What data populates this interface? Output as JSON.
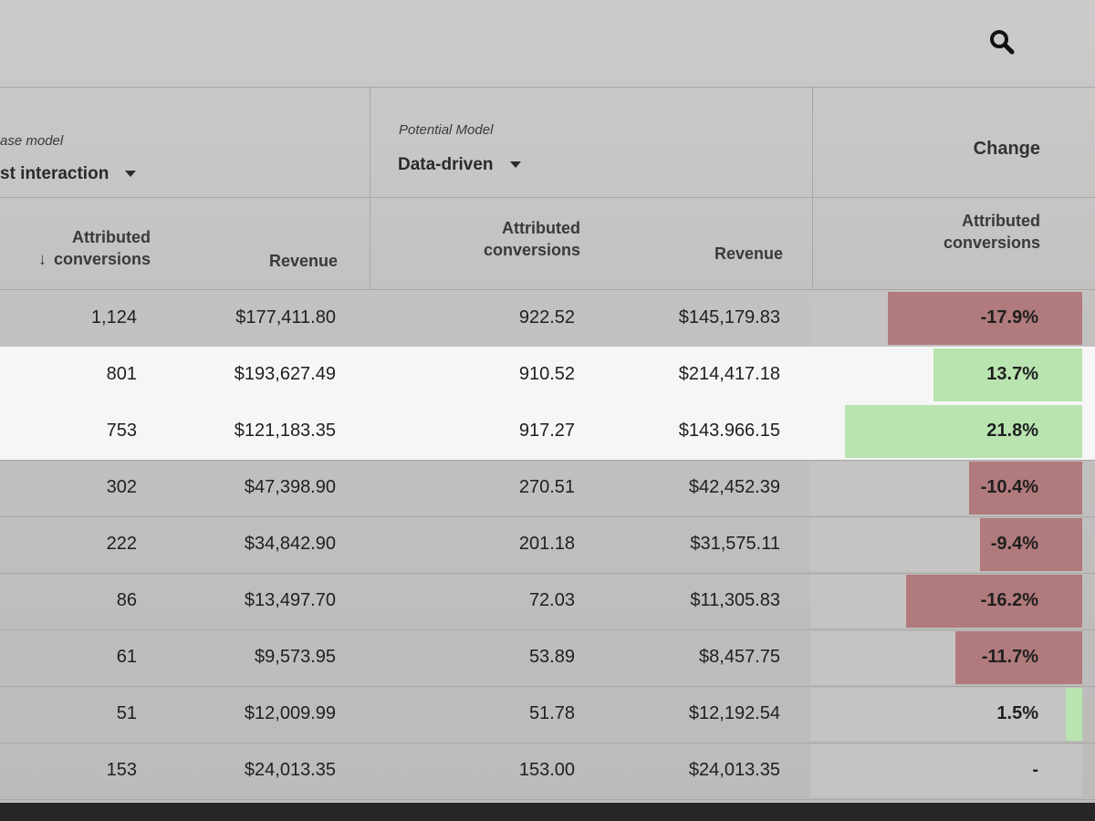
{
  "toolbar": {
    "search_icon": "search-icon"
  },
  "base_model": {
    "label": "ase model",
    "value": "st interaction"
  },
  "potential_model": {
    "label": "Potential Model",
    "value": "Data-driven"
  },
  "change_header": "Change",
  "columns": {
    "base_conversions": "Attributed conversions",
    "base_conversions_line1": "Attributed",
    "base_conversions_line2": "conversions",
    "base_revenue": "Revenue",
    "potential_conversions_line1": "Attributed",
    "potential_conversions_line2": "conversions",
    "potential_revenue": "Revenue",
    "change_conversions_line1": "Attributed",
    "change_conversions_line2": "conversions",
    "sort_arrow": "↓"
  },
  "colors": {
    "negative_bar": "#b17a7c",
    "positive_bar": "#b9e4b0",
    "selected_row": "#f6f6f6"
  },
  "rows": [
    {
      "base_conv": "1,124",
      "base_rev": "$177,411.80",
      "pot_conv": "922.52",
      "pot_rev": "$145,179.83",
      "change": "-17.9%",
      "change_value": -17.9,
      "selected": false
    },
    {
      "base_conv": "801",
      "base_rev": "$193,627.49",
      "pot_conv": "910.52",
      "pot_rev": "$214,417.18",
      "change": "13.7%",
      "change_value": 13.7,
      "selected": true
    },
    {
      "base_conv": "753",
      "base_rev": "$121,183.35",
      "pot_conv": "917.27",
      "pot_rev": "$143.966.15",
      "change": "21.8%",
      "change_value": 21.8,
      "selected": true
    },
    {
      "base_conv": "302",
      "base_rev": "$47,398.90",
      "pot_conv": "270.51",
      "pot_rev": "$42,452.39",
      "change": "-10.4%",
      "change_value": -10.4,
      "selected": false
    },
    {
      "base_conv": "222",
      "base_rev": "$34,842.90",
      "pot_conv": "201.18",
      "pot_rev": "$31,575.11",
      "change": "-9.4%",
      "change_value": -9.4,
      "selected": false
    },
    {
      "base_conv": "86",
      "base_rev": "$13,497.70",
      "pot_conv": "72.03",
      "pot_rev": "$11,305.83",
      "change": "-16.2%",
      "change_value": -16.2,
      "selected": false
    },
    {
      "base_conv": "61",
      "base_rev": "$9,573.95",
      "pot_conv": "53.89",
      "pot_rev": "$8,457.75",
      "change": "-11.7%",
      "change_value": -11.7,
      "selected": false
    },
    {
      "base_conv": "51",
      "base_rev": "$12,009.99",
      "pot_conv": "51.78",
      "pot_rev": "$12,192.54",
      "change": "1.5%",
      "change_value": 1.5,
      "selected": false
    },
    {
      "base_conv": "153",
      "base_rev": "$24,013.35",
      "pot_conv": "153.00",
      "pot_rev": "$24,013.35",
      "change": "-",
      "change_value": 0,
      "selected": false
    }
  ]
}
